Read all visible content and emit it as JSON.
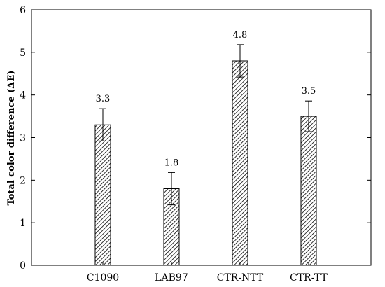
{
  "chart_data": {
    "type": "bar",
    "title": "",
    "xlabel": "",
    "ylabel": "Total color difference (ΔE)",
    "ylim": [
      0,
      6
    ],
    "yticks": [
      0,
      1,
      2,
      3,
      4,
      5,
      6
    ],
    "categories": [
      "C1090",
      "LAB97",
      "CTR-NTT",
      "CTR-TT"
    ],
    "values": [
      3.3,
      1.8,
      4.8,
      3.5
    ],
    "value_labels": [
      "3.3",
      "1.8",
      "4.8",
      "3.5"
    ],
    "errors": [
      0.38,
      0.38,
      0.38,
      0.36
    ],
    "bar_fill": "diagonal-hatch",
    "bar_color": "#000000",
    "grid": false
  }
}
